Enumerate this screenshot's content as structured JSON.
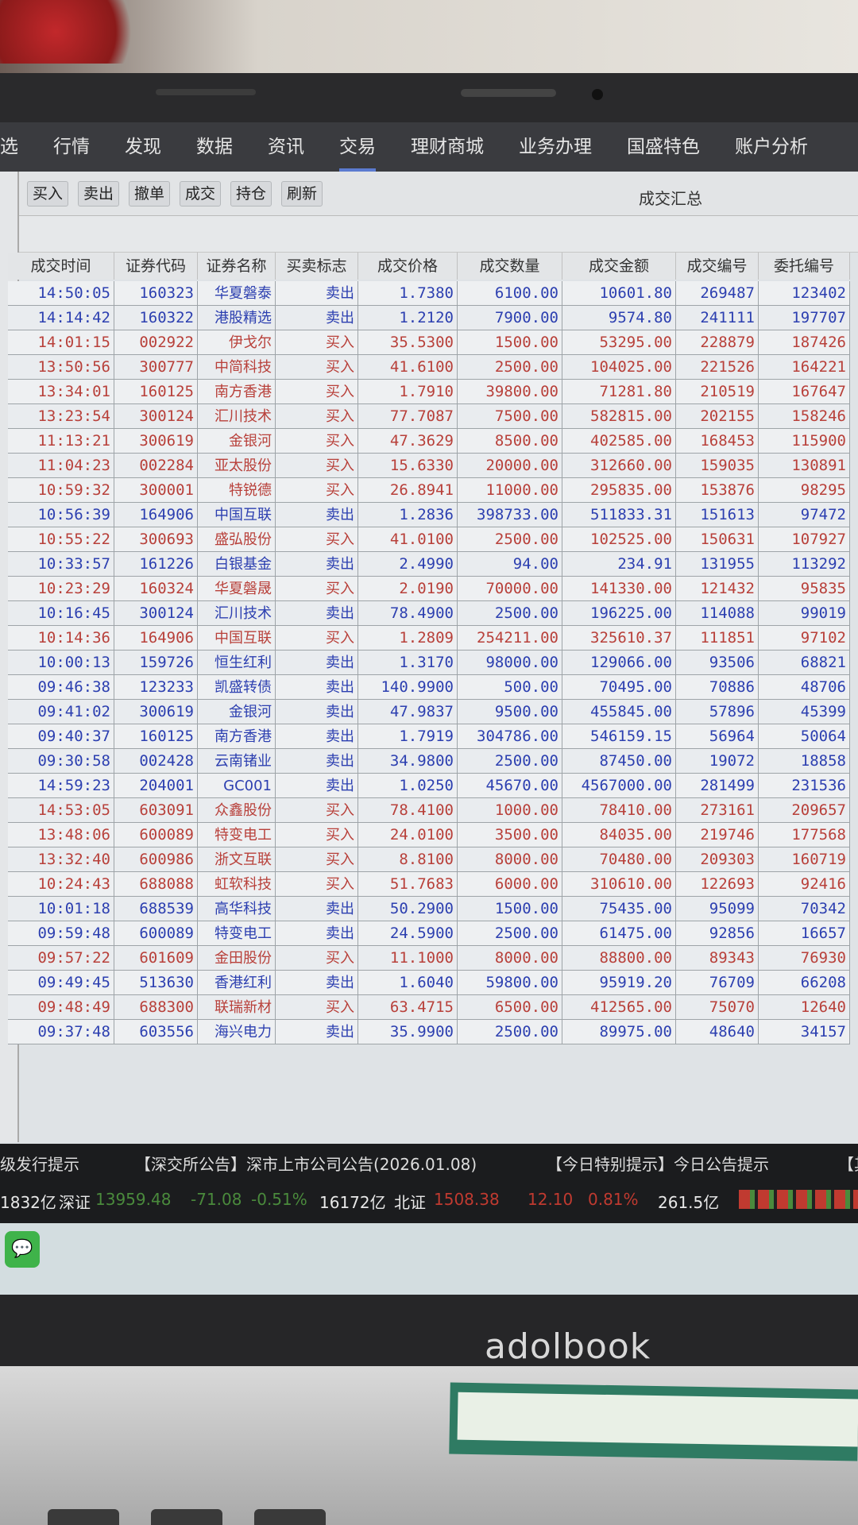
{
  "device": {
    "brand": "adolbook"
  },
  "nav": {
    "items": [
      "选",
      "行情",
      "发现",
      "数据",
      "资讯",
      "交易",
      "理财商城",
      "业务办理",
      "国盛特色",
      "账户分析"
    ],
    "active": "交易"
  },
  "toolbar": {
    "buttons": [
      "买入",
      "卖出",
      "撤单",
      "成交",
      "持仓",
      "刷新"
    ],
    "title": "成交汇总"
  },
  "table": {
    "columns": [
      "成交时间",
      "证券代码",
      "证券名称",
      "买卖标志",
      "成交价格",
      "成交数量",
      "成交金额",
      "成交编号",
      "委托编号"
    ],
    "colors": {
      "buy": "#b8403a",
      "sell": "#2c3fb0"
    },
    "rows": [
      [
        "14:50:05",
        "160323",
        "华夏磐泰",
        "卖出",
        "1.7380",
        "6100.00",
        "10601.80",
        "269487",
        "123402"
      ],
      [
        "14:14:42",
        "160322",
        "港股精选",
        "卖出",
        "1.2120",
        "7900.00",
        "9574.80",
        "241111",
        "197707"
      ],
      [
        "14:01:15",
        "002922",
        "伊戈尔",
        "买入",
        "35.5300",
        "1500.00",
        "53295.00",
        "228879",
        "187426"
      ],
      [
        "13:50:56",
        "300777",
        "中简科技",
        "买入",
        "41.6100",
        "2500.00",
        "104025.00",
        "221526",
        "164221"
      ],
      [
        "13:34:01",
        "160125",
        "南方香港",
        "买入",
        "1.7910",
        "39800.00",
        "71281.80",
        "210519",
        "167647"
      ],
      [
        "13:23:54",
        "300124",
        "汇川技术",
        "买入",
        "77.7087",
        "7500.00",
        "582815.00",
        "202155",
        "158246"
      ],
      [
        "11:13:21",
        "300619",
        "金银河",
        "买入",
        "47.3629",
        "8500.00",
        "402585.00",
        "168453",
        "115900"
      ],
      [
        "11:04:23",
        "002284",
        "亚太股份",
        "买入",
        "15.6330",
        "20000.00",
        "312660.00",
        "159035",
        "130891"
      ],
      [
        "10:59:32",
        "300001",
        "特锐德",
        "买入",
        "26.8941",
        "11000.00",
        "295835.00",
        "153876",
        "98295"
      ],
      [
        "10:56:39",
        "164906",
        "中国互联",
        "卖出",
        "1.2836",
        "398733.00",
        "511833.31",
        "151613",
        "97472"
      ],
      [
        "10:55:22",
        "300693",
        "盛弘股份",
        "买入",
        "41.0100",
        "2500.00",
        "102525.00",
        "150631",
        "107927"
      ],
      [
        "10:33:57",
        "161226",
        "白银基金",
        "卖出",
        "2.4990",
        "94.00",
        "234.91",
        "131955",
        "113292"
      ],
      [
        "10:23:29",
        "160324",
        "华夏磐晟",
        "买入",
        "2.0190",
        "70000.00",
        "141330.00",
        "121432",
        "95835"
      ],
      [
        "10:16:45",
        "300124",
        "汇川技术",
        "卖出",
        "78.4900",
        "2500.00",
        "196225.00",
        "114088",
        "99019"
      ],
      [
        "10:14:36",
        "164906",
        "中国互联",
        "买入",
        "1.2809",
        "254211.00",
        "325610.37",
        "111851",
        "97102"
      ],
      [
        "10:00:13",
        "159726",
        "恒生红利",
        "卖出",
        "1.3170",
        "98000.00",
        "129066.00",
        "93506",
        "68821"
      ],
      [
        "09:46:38",
        "123233",
        "凯盛转债",
        "卖出",
        "140.9900",
        "500.00",
        "70495.00",
        "70886",
        "48706"
      ],
      [
        "09:41:02",
        "300619",
        "金银河",
        "卖出",
        "47.9837",
        "9500.00",
        "455845.00",
        "57896",
        "45399"
      ],
      [
        "09:40:37",
        "160125",
        "南方香港",
        "卖出",
        "1.7919",
        "304786.00",
        "546159.15",
        "56964",
        "50064"
      ],
      [
        "09:30:58",
        "002428",
        "云南锗业",
        "卖出",
        "34.9800",
        "2500.00",
        "87450.00",
        "19072",
        "18858"
      ],
      [
        "14:59:23",
        "204001",
        "GC001",
        "卖出",
        "1.0250",
        "45670.00",
        "4567000.00",
        "281499",
        "231536"
      ],
      [
        "14:53:05",
        "603091",
        "众鑫股份",
        "买入",
        "78.4100",
        "1000.00",
        "78410.00",
        "273161",
        "209657"
      ],
      [
        "13:48:06",
        "600089",
        "特变电工",
        "买入",
        "24.0100",
        "3500.00",
        "84035.00",
        "219746",
        "177568"
      ],
      [
        "13:32:40",
        "600986",
        "浙文互联",
        "买入",
        "8.8100",
        "8000.00",
        "70480.00",
        "209303",
        "160719"
      ],
      [
        "10:24:43",
        "688088",
        "虹软科技",
        "买入",
        "51.7683",
        "6000.00",
        "310610.00",
        "122693",
        "92416"
      ],
      [
        "10:01:18",
        "688539",
        "高华科技",
        "卖出",
        "50.2900",
        "1500.00",
        "75435.00",
        "95099",
        "70342"
      ],
      [
        "09:59:48",
        "600089",
        "特变电工",
        "卖出",
        "24.5900",
        "2500.00",
        "61475.00",
        "92856",
        "16657"
      ],
      [
        "09:57:22",
        "601609",
        "金田股份",
        "买入",
        "11.1000",
        "8000.00",
        "88800.00",
        "89343",
        "76930"
      ],
      [
        "09:49:45",
        "513630",
        "香港红利",
        "卖出",
        "1.6040",
        "59800.00",
        "95919.20",
        "76709",
        "66208"
      ],
      [
        "09:48:49",
        "688300",
        "联瑞新材",
        "买入",
        "63.4715",
        "6500.00",
        "412565.00",
        "75070",
        "12640"
      ],
      [
        "09:37:48",
        "603556",
        "海兴电力",
        "卖出",
        "35.9900",
        "2500.00",
        "89975.00",
        "48640",
        "34157"
      ]
    ]
  },
  "ticker": {
    "line1": [
      "级发行提示",
      "【深交所公告】深市上市公司公告(2026.01.08)",
      "【今日特别提示】今日公告提示",
      "【其"
    ],
    "line2": {
      "prev_amount": "1832亿",
      "sz_label": "深证",
      "sz_value": "13959.48",
      "sz_change": "-71.08",
      "sz_pct": "-0.51%",
      "sz_amount": "16172亿",
      "bj_label": "北证",
      "bj_value": "1508.38",
      "bj_change": "12.10",
      "bj_pct": "0.81%",
      "bj_amount": "261.5亿"
    },
    "colors": {
      "up": "#c03a30",
      "down": "#4a8a3c"
    }
  },
  "taskbar": {
    "icons": [
      "wechat-icon"
    ]
  }
}
